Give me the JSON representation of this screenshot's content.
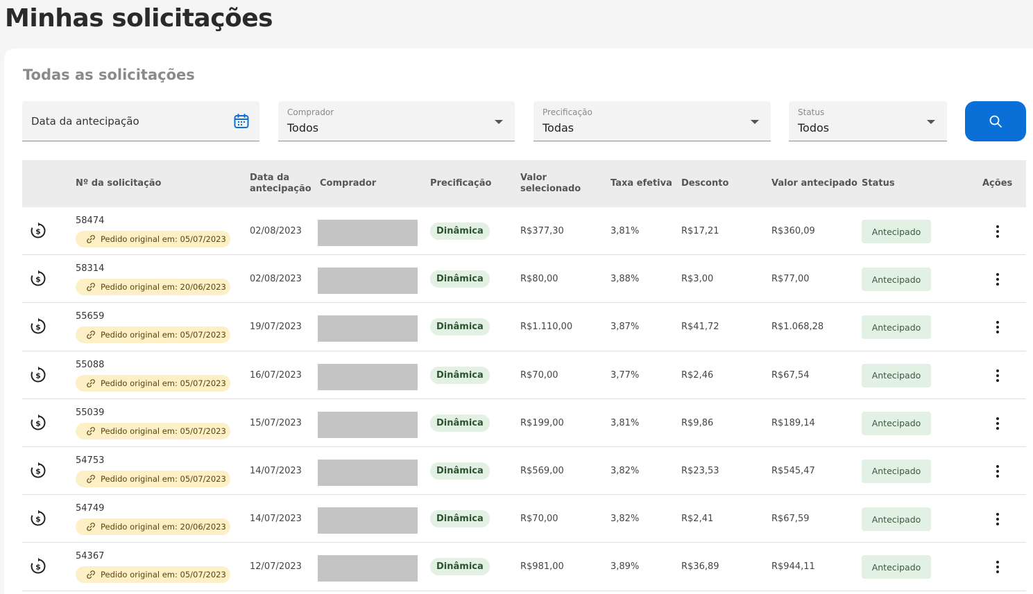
{
  "page": {
    "title": "Minhas solicitações"
  },
  "card": {
    "title": "Todas as solicitações"
  },
  "filters": {
    "date": {
      "placeholder": "Data da antecipação"
    },
    "buyer": {
      "label": "Comprador",
      "value": "Todos"
    },
    "pricing": {
      "label": "Precificação",
      "value": "Todas"
    },
    "status": {
      "label": "Status",
      "value": "Todos"
    }
  },
  "colors": {
    "primary": "#0a6fd6",
    "chip_bg": "#e2f1e4",
    "original_bg": "#fdefc6"
  },
  "table": {
    "headers": {
      "number": "Nº da solicitação",
      "date_line1": "Data da",
      "date_line2": "antecipação",
      "buyer": "Comprador",
      "pricing": "Precificação",
      "selected_line1": "Valor",
      "selected_line2": "selecionado",
      "rate": "Taxa efetiva",
      "discount": "Desconto",
      "advanced": "Valor antecipado",
      "status": "Status",
      "actions": "Ações"
    },
    "rows": [
      {
        "number": "58474",
        "original": "Pedido original em: 05/07/2023",
        "date": "02/08/2023",
        "pricing": "Dinâmica",
        "selected": "R$377,30",
        "rate": "3,81%",
        "discount": "R$17,21",
        "advanced": "R$360,09",
        "status": "Antecipado"
      },
      {
        "number": "58314",
        "original": "Pedido original em: 20/06/2023",
        "date": "02/08/2023",
        "pricing": "Dinâmica",
        "selected": "R$80,00",
        "rate": "3,88%",
        "discount": "R$3,00",
        "advanced": "R$77,00",
        "status": "Antecipado"
      },
      {
        "number": "55659",
        "original": "Pedido original em: 05/07/2023",
        "date": "19/07/2023",
        "pricing": "Dinâmica",
        "selected": "R$1.110,00",
        "rate": "3,87%",
        "discount": "R$41,72",
        "advanced": "R$1.068,28",
        "status": "Antecipado"
      },
      {
        "number": "55088",
        "original": "Pedido original em: 05/07/2023",
        "date": "16/07/2023",
        "pricing": "Dinâmica",
        "selected": "R$70,00",
        "rate": "3,77%",
        "discount": "R$2,46",
        "advanced": "R$67,54",
        "status": "Antecipado"
      },
      {
        "number": "55039",
        "original": "Pedido original em: 05/07/2023",
        "date": "15/07/2023",
        "pricing": "Dinâmica",
        "selected": "R$199,00",
        "rate": "3,81%",
        "discount": "R$9,86",
        "advanced": "R$189,14",
        "status": "Antecipado"
      },
      {
        "number": "54753",
        "original": "Pedido original em: 05/07/2023",
        "date": "14/07/2023",
        "pricing": "Dinâmica",
        "selected": "R$569,00",
        "rate": "3,82%",
        "discount": "R$23,53",
        "advanced": "R$545,47",
        "status": "Antecipado"
      },
      {
        "number": "54749",
        "original": "Pedido original em: 20/06/2023",
        "date": "14/07/2023",
        "pricing": "Dinâmica",
        "selected": "R$70,00",
        "rate": "3,82%",
        "discount": "R$2,41",
        "advanced": "R$67,59",
        "status": "Antecipado"
      },
      {
        "number": "54367",
        "original": "Pedido original em: 05/07/2023",
        "date": "12/07/2023",
        "pricing": "Dinâmica",
        "selected": "R$981,00",
        "rate": "3,89%",
        "discount": "R$36,89",
        "advanced": "R$944,11",
        "status": "Antecipado"
      }
    ]
  }
}
